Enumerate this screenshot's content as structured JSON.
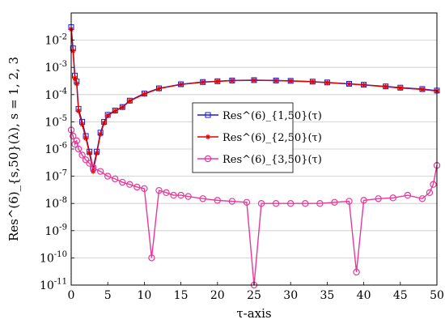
{
  "chart_data": {
    "type": "scatter",
    "xlabel": "τ-axis",
    "ylabel": "Res^(6)_{s,50}(λ),  s = 1, 2, 3",
    "x_ticks": [
      0,
      5,
      10,
      15,
      20,
      25,
      30,
      35,
      40,
      45,
      50
    ],
    "y_scale": "log",
    "y_ticks": [
      1e-11,
      1e-10,
      1e-09,
      1e-08,
      1e-07,
      1e-06,
      1e-05,
      0.0001,
      0.001,
      0.01
    ],
    "y_tick_labels": [
      "10^-11",
      "10^-10",
      "10^-9",
      "10^-8",
      "10^-7",
      "10^-6",
      "10^-5",
      "10^-4",
      "10^-3",
      "10^-2"
    ],
    "xlim": [
      0,
      50
    ],
    "ylim": [
      1e-11,
      0.1
    ],
    "grid": "horizontal",
    "legend_position": "center",
    "series": [
      {
        "name": "Res^(6)_{1,50}(τ)",
        "color": "#1a1ad6",
        "marker": "square",
        "x": [
          0.0,
          0.25,
          0.5,
          0.75,
          1.0,
          1.5,
          2.0,
          2.5,
          3.0,
          3.5,
          4.0,
          4.5,
          5.0,
          6.0,
          7.0,
          8.0,
          10.0,
          12.0,
          15.0,
          18.0,
          20.0,
          22.0,
          25.0,
          28.0,
          30.0,
          33.0,
          35.0,
          38.0,
          40.0,
          43.0,
          45.0,
          48.0,
          50.0
        ],
        "y": [
          0.03,
          0.005,
          0.0005,
          0.0003,
          3e-05,
          1e-05,
          3e-06,
          8e-07,
          2e-07,
          8e-07,
          4e-06,
          1e-05,
          1.8e-05,
          2.6e-05,
          3.5e-05,
          6e-05,
          0.00011,
          0.00017,
          0.00024,
          0.00029,
          0.00031,
          0.00033,
          0.00034,
          0.00033,
          0.00032,
          0.0003,
          0.00028,
          0.00025,
          0.00023,
          0.0002,
          0.00018,
          0.00016,
          0.00014
        ]
      },
      {
        "name": "Res^(6)_{2,50}(τ)",
        "color": "#e00000",
        "marker": "star",
        "x": [
          0.0,
          0.25,
          0.5,
          0.75,
          1.0,
          1.5,
          2.0,
          2.5,
          3.0,
          3.5,
          4.0,
          4.5,
          5.0,
          6.0,
          7.0,
          8.0,
          10.0,
          12.0,
          15.0,
          18.0,
          20.0,
          22.0,
          25.0,
          28.0,
          30.0,
          33.0,
          35.0,
          38.0,
          40.0,
          43.0,
          45.0,
          48.0,
          50.0
        ],
        "y": [
          0.025,
          0.004,
          0.0004,
          0.00025,
          2.5e-05,
          8e-06,
          2.5e-06,
          7e-07,
          1.5e-07,
          7e-07,
          3.5e-06,
          9e-06,
          1.7e-05,
          2.5e-05,
          3.4e-05,
          5.8e-05,
          0.000105,
          0.000165,
          0.000235,
          0.000285,
          0.000305,
          0.000325,
          0.000335,
          0.000325,
          0.000315,
          0.000295,
          0.000275,
          0.000245,
          0.000225,
          0.000195,
          0.000175,
          0.000155,
          0.000135
        ]
      },
      {
        "name": "Res^(6)_{3,50}(τ)",
        "color": "#e8389a",
        "marker": "circle",
        "x": [
          0.0,
          0.25,
          0.5,
          0.75,
          1.0,
          1.5,
          2.0,
          2.5,
          3.0,
          4.0,
          5.0,
          6.0,
          7.0,
          8.0,
          9.0,
          10.0,
          11.0,
          12.0,
          13.0,
          14.0,
          15.0,
          16.0,
          18.0,
          20.0,
          22.0,
          24.0,
          25.0,
          26.0,
          28.0,
          30.0,
          32.0,
          34.0,
          36.0,
          38.0,
          39.0,
          40.0,
          42.0,
          44.0,
          46.0,
          48.0,
          49.0,
          49.5,
          50.0
        ],
        "y": [
          5e-06,
          3e-06,
          1.5e-06,
          2e-06,
          1e-06,
          6e-07,
          4e-07,
          3e-07,
          2e-07,
          1.5e-07,
          1e-07,
          8e-08,
          6e-08,
          5e-08,
          4e-08,
          3.5e-08,
          1e-10,
          3e-08,
          2.5e-08,
          2e-08,
          2e-08,
          1.8e-08,
          1.5e-08,
          1.3e-08,
          1.2e-08,
          1.1e-08,
          1e-11,
          1e-08,
          1e-08,
          1e-08,
          1e-08,
          1e-08,
          1.1e-08,
          1.2e-08,
          3e-11,
          1.3e-08,
          1.5e-08,
          1.6e-08,
          2e-08,
          1.5e-08,
          2.5e-08,
          5e-08,
          2.5e-07
        ]
      }
    ]
  }
}
